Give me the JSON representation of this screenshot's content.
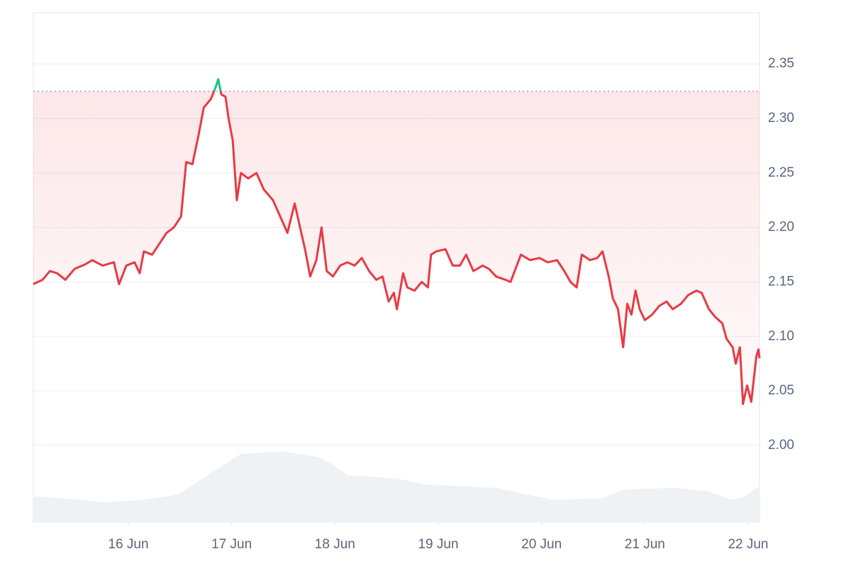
{
  "chart_data": {
    "type": "line",
    "x": [
      15.08,
      15.17,
      15.24,
      15.31,
      15.39,
      15.48,
      15.58,
      15.65,
      15.75,
      15.86,
      15.91,
      15.98,
      16.06,
      16.11,
      16.15,
      16.23,
      16.3,
      16.37,
      16.44,
      16.51,
      16.56,
      16.62,
      16.68,
      16.73,
      16.8,
      16.85,
      16.87,
      16.9,
      16.94,
      16.97,
      17.01,
      17.05,
      17.09,
      17.16,
      17.24,
      17.31,
      17.4,
      17.47,
      17.54,
      17.61,
      17.65,
      17.71,
      17.76,
      17.82,
      17.87,
      17.92,
      17.98,
      18.05,
      18.12,
      18.19,
      18.26,
      18.33,
      18.4,
      18.46,
      18.52,
      18.57,
      18.6,
      18.66,
      18.7,
      18.77,
      18.84,
      18.9,
      18.93,
      18.98,
      19.07,
      19.14,
      19.21,
      19.27,
      19.34,
      19.43,
      19.49,
      19.56,
      19.65,
      19.7,
      19.8,
      19.89,
      19.98,
      20.06,
      20.15,
      20.22,
      20.28,
      20.34,
      20.39,
      20.47,
      20.54,
      20.59,
      20.65,
      20.69,
      20.74,
      20.79,
      20.83,
      20.87,
      20.91,
      20.95,
      21.0,
      21.07,
      21.14,
      21.21,
      21.27,
      21.35,
      21.42,
      21.5,
      21.55,
      21.62,
      21.68,
      21.75,
      21.79,
      21.85,
      21.88,
      21.92,
      21.95,
      21.99,
      22.03,
      22.08,
      22.1,
      22.11
    ],
    "values": [
      2.148,
      2.152,
      2.16,
      2.158,
      2.152,
      2.162,
      2.166,
      2.17,
      2.165,
      2.168,
      2.148,
      2.165,
      2.168,
      2.158,
      2.178,
      2.175,
      2.185,
      2.195,
      2.2,
      2.21,
      2.26,
      2.258,
      2.285,
      2.31,
      2.318,
      2.33,
      2.336,
      2.322,
      2.32,
      2.3,
      2.28,
      2.225,
      2.25,
      2.245,
      2.25,
      2.235,
      2.225,
      2.21,
      2.195,
      2.222,
      2.205,
      2.18,
      2.155,
      2.17,
      2.2,
      2.16,
      2.155,
      2.165,
      2.168,
      2.165,
      2.172,
      2.16,
      2.152,
      2.155,
      2.132,
      2.14,
      2.125,
      2.158,
      2.145,
      2.142,
      2.15,
      2.145,
      2.175,
      2.178,
      2.18,
      2.165,
      2.165,
      2.175,
      2.16,
      2.165,
      2.162,
      2.155,
      2.152,
      2.15,
      2.175,
      2.17,
      2.172,
      2.168,
      2.17,
      2.16,
      2.15,
      2.145,
      2.175,
      2.17,
      2.172,
      2.178,
      2.155,
      2.135,
      2.125,
      2.09,
      2.13,
      2.12,
      2.142,
      2.125,
      2.115,
      2.12,
      2.128,
      2.132,
      2.125,
      2.13,
      2.138,
      2.142,
      2.14,
      2.125,
      2.118,
      2.112,
      2.098,
      2.09,
      2.075,
      2.09,
      2.038,
      2.055,
      2.04,
      2.082,
      2.088,
      2.08
    ],
    "up_color": "#16c784",
    "down_color": "#ea3943",
    "baseline": 2.325,
    "volume": {
      "x": [
        15.08,
        15.44,
        15.79,
        16.13,
        16.47,
        16.61,
        16.82,
        17.09,
        17.5,
        17.85,
        17.98,
        18.12,
        18.6,
        18.88,
        19.56,
        20.11,
        20.59,
        20.8,
        21.28,
        21.62,
        21.83,
        21.97,
        22.11
      ],
      "values": [
        31,
        28,
        24,
        27,
        33,
        43,
        60,
        81,
        84,
        77,
        68,
        56,
        52,
        45,
        41,
        27,
        29,
        39,
        41,
        37,
        27,
        31,
        43
      ],
      "axis": "y2",
      "color": "#eff2f5"
    },
    "xlim": [
      15.08,
      22.11
    ],
    "xticks": [
      {
        "value": 16,
        "label": "16 Jun"
      },
      {
        "value": 17,
        "label": "17 Jun"
      },
      {
        "value": 18,
        "label": "18 Jun"
      },
      {
        "value": 19,
        "label": "19 Jun"
      },
      {
        "value": 20,
        "label": "20 Jun"
      },
      {
        "value": 21,
        "label": "21 Jun"
      },
      {
        "value": 22,
        "label": "22 Jun"
      }
    ],
    "ylim": [
      1.929,
      2.397
    ],
    "yticks": [
      {
        "value": 2.0,
        "label": "2.00"
      },
      2.05,
      {
        "value": 2.1,
        "label": "2.10"
      },
      2.15,
      {
        "value": 2.2,
        "label": "2.20"
      },
      2.25,
      {
        "value": 2.3,
        "label": "2.30"
      },
      2.35
    ],
    "y2lim": [
      0,
      100
    ],
    "grid": true
  }
}
